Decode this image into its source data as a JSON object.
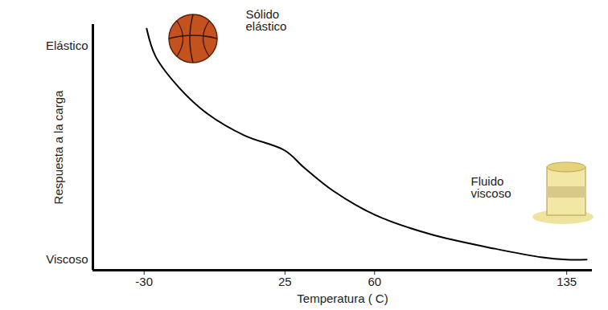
{
  "chart_data": {
    "type": "line",
    "x_label": "Temperatura ( C)",
    "y_label": "Respuesta a la carga",
    "x": [
      -29,
      -25.5,
      -16,
      -5,
      9.3,
      25,
      32.5,
      44,
      60,
      81.4,
      107.3,
      125.6,
      135,
      142.8
    ],
    "values": [
      1.08,
      0.95,
      0.8,
      0.68,
      0.58,
      0.51,
      0.43,
      0.32,
      0.21,
      0.12,
      0.05,
      0.01,
      0,
      0
    ],
    "color": "#000000",
    "xlim": [
      -50,
      145
    ],
    "xticks": [
      -30,
      25,
      60,
      135
    ],
    "ylim": [
      -0.05,
      1.1
    ],
    "yticks": [
      {
        "value": 0,
        "label": "Viscoso"
      },
      {
        "value": 1,
        "label": "Elástico"
      }
    ],
    "annotations": [
      "Sólido\nelástico",
      "Fluido\nviscoso"
    ]
  }
}
